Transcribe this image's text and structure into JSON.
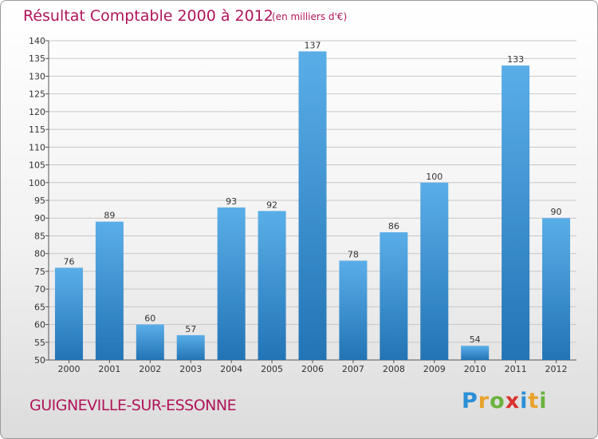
{
  "title": "Résultat Comptable 2000 à 2012",
  "subtitle": "(en milliers d'€)",
  "location": "GUIGNEVILLE-SUR-ESSONNE",
  "logo": {
    "text": "Proxiti",
    "letters": [
      "P",
      "r",
      "o",
      "x",
      "i",
      "t",
      "i"
    ],
    "colors": [
      "#2a8fd6",
      "#e8a22b",
      "#6cb33e",
      "#d8322f",
      "#2a8fd6",
      "#e8a22b",
      "#6cb33e"
    ]
  },
  "colors": {
    "title": "#b0155a",
    "bar_top": "#5aaee8",
    "bar_bottom": "#2274b5",
    "grid": "#c8c8c8"
  },
  "chart_data": {
    "type": "bar",
    "title": "Résultat Comptable 2000 à 2012",
    "subtitle": "(en milliers d'€)",
    "categories": [
      "2000",
      "2001",
      "2002",
      "2003",
      "2004",
      "2005",
      "2006",
      "2007",
      "2008",
      "2009",
      "2010",
      "2011",
      "2012"
    ],
    "values": [
      76,
      89,
      60,
      57,
      93,
      92,
      137,
      78,
      86,
      100,
      54,
      133,
      90
    ],
    "ylim": [
      50,
      140
    ],
    "yticks": [
      50,
      55,
      60,
      65,
      70,
      75,
      80,
      85,
      90,
      95,
      100,
      105,
      110,
      115,
      120,
      125,
      130,
      135,
      140
    ],
    "grid": true,
    "data_labels": true
  }
}
